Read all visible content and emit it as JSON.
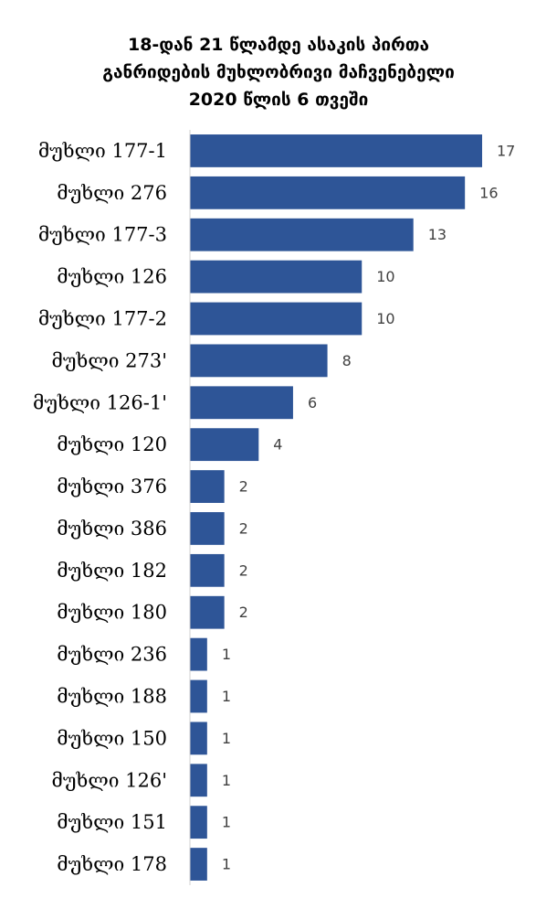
{
  "chart_data": {
    "type": "bar",
    "orientation": "horizontal",
    "title_lines": [
      "18-დან 21 წლამდე ასაკის პირთა",
      "განრიდების მუხლობრივი მაჩვენებელი",
      "2020 წლის 6 თვეში"
    ],
    "categories": [
      "მუხლი 177-1",
      "მუხლი 276",
      "მუხლი 177-3",
      "მუხლი 126",
      "მუხლი 177-2",
      "მუხლი 273'",
      "მუხლი 126-1'",
      "მუხლი 120",
      "მუხლი 376",
      "მუხლი 386",
      "მუხლი 182",
      "მუხლი 180",
      "მუხლი 236",
      "მუხლი 188",
      "მუხლი 150",
      "მუხლი 126'",
      "მუხლი 151",
      "მუხლი 178"
    ],
    "values": [
      17,
      16,
      13,
      10,
      10,
      8,
      6,
      4,
      2,
      2,
      2,
      2,
      1,
      1,
      1,
      1,
      1,
      1
    ],
    "xlim": [
      0,
      17
    ],
    "grid": false,
    "data_labels": true,
    "bar_color": "#2e5597"
  }
}
